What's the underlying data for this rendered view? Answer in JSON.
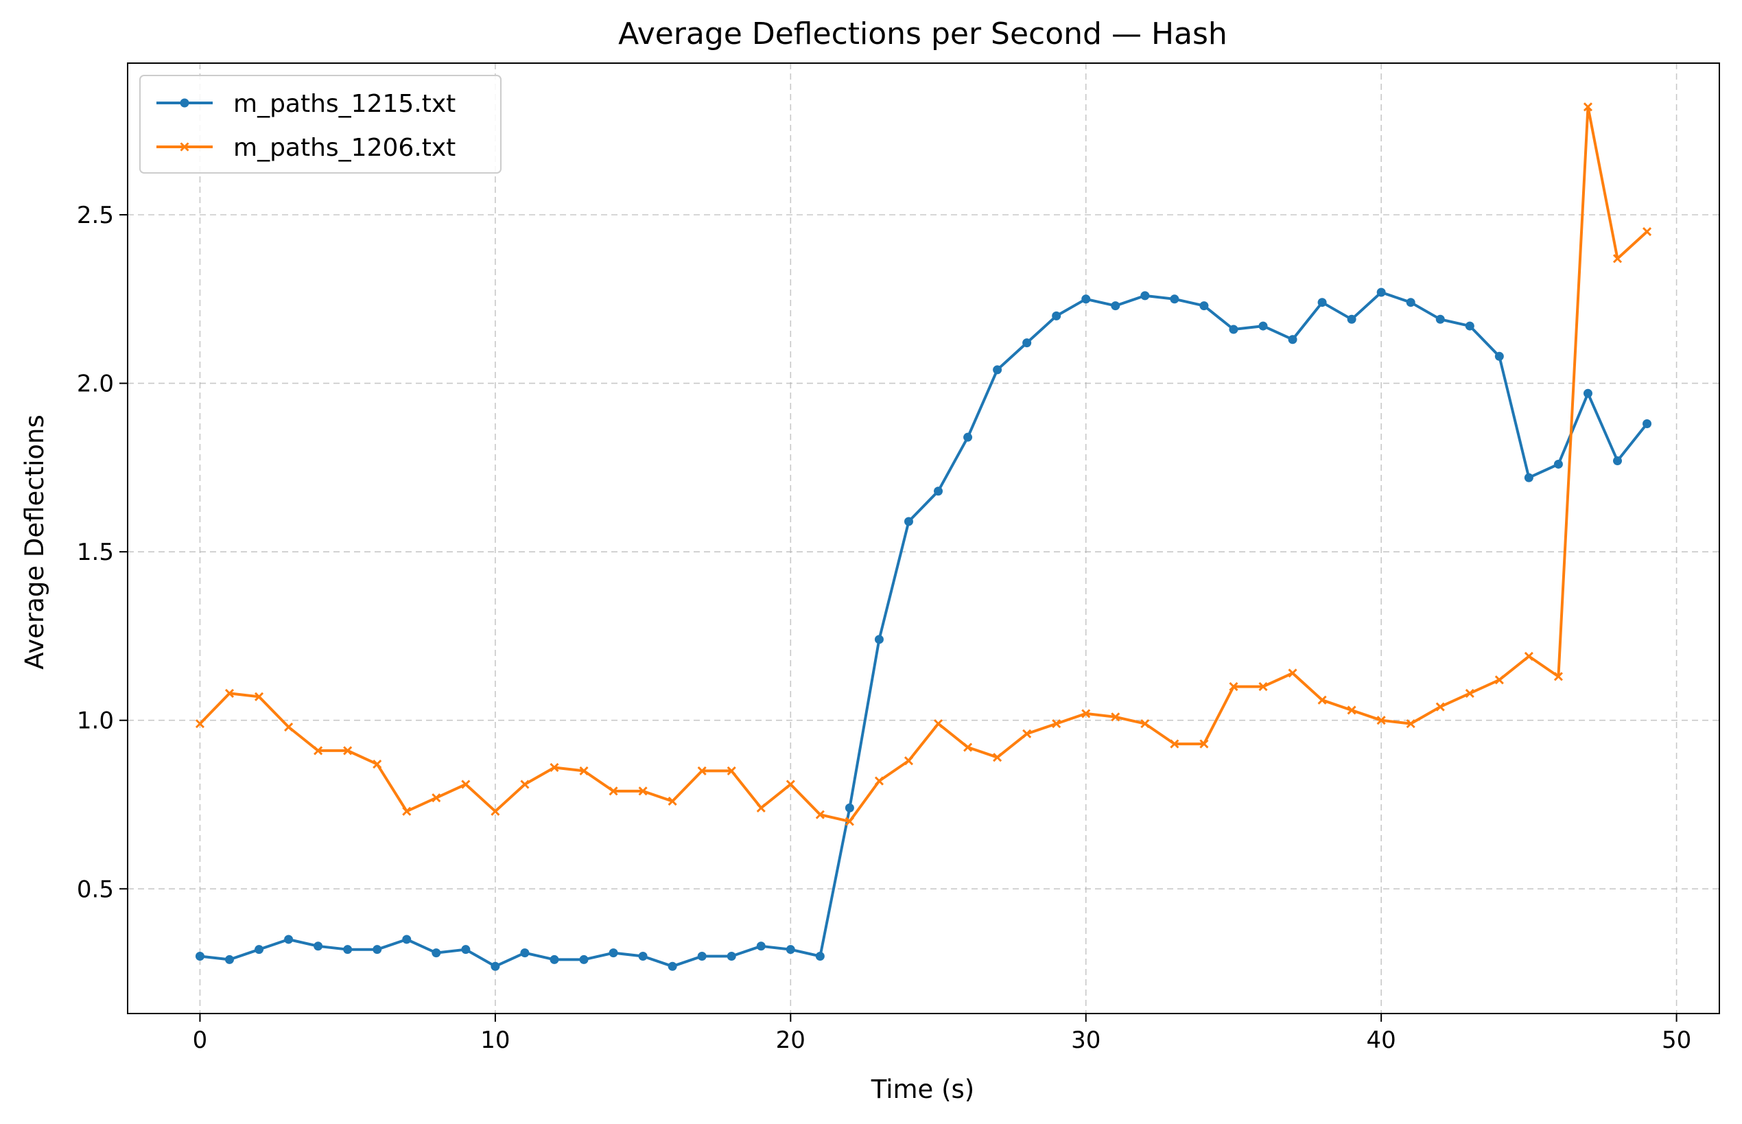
{
  "chart_data": {
    "type": "line",
    "title": "Average Deflections per Second — Hash",
    "xlabel": "Time (s)",
    "ylabel": "Average Deflections",
    "xlim": [
      -2.45,
      51.45
    ],
    "ylim": [
      0.13,
      2.95
    ],
    "xticks": [
      0,
      10,
      20,
      30,
      40,
      50
    ],
    "yticks": [
      0.5,
      1.0,
      1.5,
      2.0,
      2.5
    ],
    "xtick_labels": [
      "0",
      "10",
      "20",
      "30",
      "40",
      "50"
    ],
    "ytick_labels": [
      "0.5",
      "1.0",
      "1.5",
      "2.0",
      "2.5"
    ],
    "grid": true,
    "legend_position": "top-left",
    "x": [
      0,
      1,
      2,
      3,
      4,
      5,
      6,
      7,
      8,
      9,
      10,
      11,
      12,
      13,
      14,
      15,
      16,
      17,
      18,
      19,
      20,
      21,
      22,
      23,
      24,
      25,
      26,
      27,
      28,
      29,
      30,
      31,
      32,
      33,
      34,
      35,
      36,
      37,
      38,
      39,
      40,
      41,
      42,
      43,
      44,
      45,
      46,
      47,
      48,
      49
    ],
    "series": [
      {
        "name": "m_paths_1215.txt",
        "color": "#1f77b4",
        "marker": "dot",
        "values": [
          0.3,
          0.29,
          0.32,
          0.35,
          0.33,
          0.32,
          0.32,
          0.35,
          0.31,
          0.32,
          0.27,
          0.31,
          0.29,
          0.29,
          0.31,
          0.3,
          0.27,
          0.3,
          0.3,
          0.33,
          0.32,
          0.3,
          0.74,
          1.24,
          1.59,
          1.68,
          1.84,
          2.04,
          2.12,
          2.2,
          2.25,
          2.23,
          2.26,
          2.25,
          2.23,
          2.16,
          2.17,
          2.13,
          2.24,
          2.19,
          2.27,
          2.24,
          2.19,
          2.17,
          2.08,
          1.72,
          1.76,
          1.97,
          1.77,
          1.88
        ]
      },
      {
        "name": "m_paths_1206.txt",
        "color": "#ff7f0e",
        "marker": "x",
        "values": [
          0.99,
          1.08,
          1.07,
          0.98,
          0.91,
          0.91,
          0.87,
          0.73,
          0.77,
          0.81,
          0.73,
          0.81,
          0.86,
          0.85,
          0.79,
          0.79,
          0.76,
          0.85,
          0.85,
          0.74,
          0.81,
          0.72,
          0.7,
          0.82,
          0.88,
          0.99,
          0.92,
          0.89,
          0.96,
          0.99,
          1.02,
          1.01,
          0.99,
          0.93,
          0.93,
          1.1,
          1.1,
          1.14,
          1.06,
          1.03,
          1.0,
          0.99,
          1.04,
          1.08,
          1.12,
          1.19,
          1.13,
          2.82,
          2.37,
          2.45
        ]
      }
    ]
  }
}
